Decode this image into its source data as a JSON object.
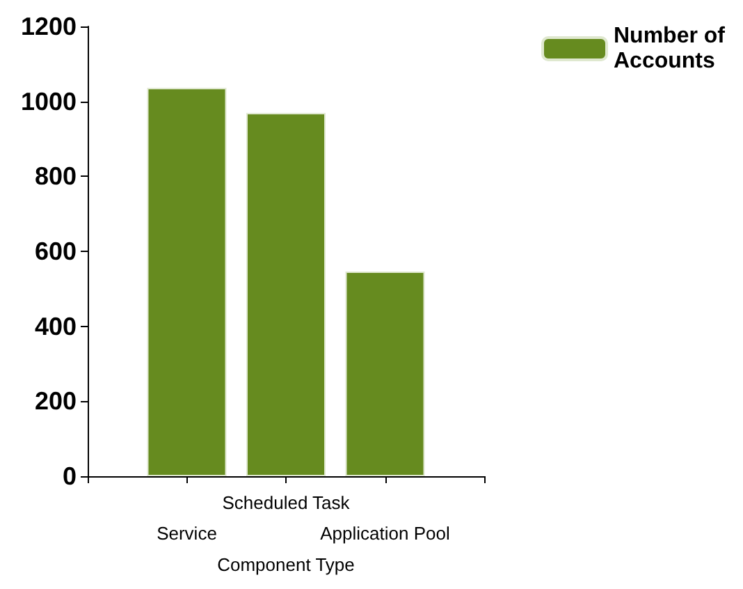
{
  "chart_data": {
    "type": "bar",
    "xlabel": "Component Type",
    "categories": [
      "Service",
      "Scheduled Task",
      "Application Pool"
    ],
    "series": [
      {
        "name": "Number of Accounts",
        "color": "#668b1f",
        "values": [
          1036,
          969,
          546
        ]
      }
    ],
    "ylim": [
      0,
      1200
    ],
    "yticks": [
      0,
      200,
      400,
      600,
      800,
      1000,
      1200
    ],
    "grid": false,
    "legend": "top right"
  }
}
